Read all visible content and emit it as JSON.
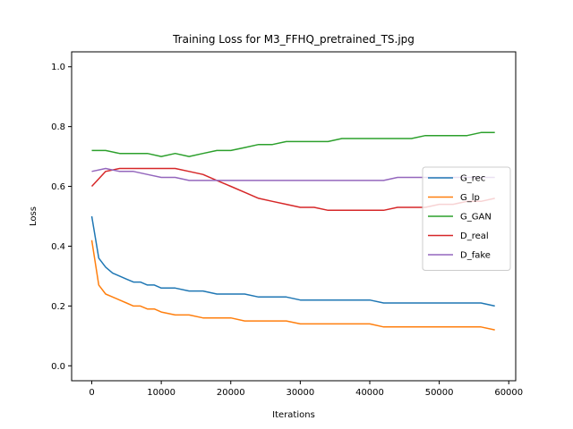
{
  "chart_data": {
    "type": "line",
    "title": "Training Loss for M3_FFHQ_pretrained_TS.jpg",
    "xlabel": "Iterations",
    "ylabel": "Loss",
    "xlim": [
      -2900,
      61000
    ],
    "ylim": [
      -0.05,
      1.05
    ],
    "xticks": [
      0,
      10000,
      20000,
      30000,
      40000,
      50000,
      60000
    ],
    "yticks": [
      0.0,
      0.2,
      0.4,
      0.6,
      0.8,
      1.0
    ],
    "xtick_labels": [
      "0",
      "10000",
      "20000",
      "30000",
      "40000",
      "50000",
      "60000"
    ],
    "ytick_labels": [
      "0.0",
      "0.2",
      "0.4",
      "0.6",
      "0.8",
      "1.0"
    ],
    "grid": false,
    "legend_position": "center-right",
    "series": [
      {
        "name": "G_rec",
        "color": "#1f77b4",
        "x": [
          0,
          1000,
          2000,
          3000,
          4000,
          5000,
          6000,
          7000,
          8000,
          9000,
          10000,
          12000,
          14000,
          16000,
          18000,
          20000,
          22000,
          24000,
          26000,
          28000,
          30000,
          32000,
          34000,
          36000,
          38000,
          40000,
          42000,
          44000,
          46000,
          48000,
          50000,
          52000,
          54000,
          56000,
          58000
        ],
        "values": [
          0.5,
          0.36,
          0.33,
          0.31,
          0.3,
          0.29,
          0.28,
          0.28,
          0.27,
          0.27,
          0.26,
          0.26,
          0.25,
          0.25,
          0.24,
          0.24,
          0.24,
          0.23,
          0.23,
          0.23,
          0.22,
          0.22,
          0.22,
          0.22,
          0.22,
          0.22,
          0.21,
          0.21,
          0.21,
          0.21,
          0.21,
          0.21,
          0.21,
          0.21,
          0.2
        ]
      },
      {
        "name": "G_lp",
        "color": "#ff7f0e",
        "x": [
          0,
          1000,
          2000,
          3000,
          4000,
          5000,
          6000,
          7000,
          8000,
          9000,
          10000,
          12000,
          14000,
          16000,
          18000,
          20000,
          22000,
          24000,
          26000,
          28000,
          30000,
          32000,
          34000,
          36000,
          38000,
          40000,
          42000,
          44000,
          46000,
          48000,
          50000,
          52000,
          54000,
          56000,
          58000
        ],
        "values": [
          0.42,
          0.27,
          0.24,
          0.23,
          0.22,
          0.21,
          0.2,
          0.2,
          0.19,
          0.19,
          0.18,
          0.17,
          0.17,
          0.16,
          0.16,
          0.16,
          0.15,
          0.15,
          0.15,
          0.15,
          0.14,
          0.14,
          0.14,
          0.14,
          0.14,
          0.14,
          0.13,
          0.13,
          0.13,
          0.13,
          0.13,
          0.13,
          0.13,
          0.13,
          0.12
        ]
      },
      {
        "name": "G_GAN",
        "color": "#2ca02c",
        "x": [
          0,
          2000,
          4000,
          6000,
          8000,
          10000,
          12000,
          14000,
          16000,
          18000,
          20000,
          22000,
          24000,
          26000,
          28000,
          30000,
          32000,
          34000,
          36000,
          38000,
          40000,
          42000,
          44000,
          46000,
          48000,
          50000,
          52000,
          54000,
          56000,
          58000
        ],
        "values": [
          0.72,
          0.72,
          0.71,
          0.71,
          0.71,
          0.7,
          0.71,
          0.7,
          0.71,
          0.72,
          0.72,
          0.73,
          0.74,
          0.74,
          0.75,
          0.75,
          0.75,
          0.75,
          0.76,
          0.76,
          0.76,
          0.76,
          0.76,
          0.76,
          0.77,
          0.77,
          0.77,
          0.77,
          0.78,
          0.78
        ]
      },
      {
        "name": "D_real",
        "color": "#d62728",
        "x": [
          0,
          2000,
          4000,
          6000,
          8000,
          10000,
          12000,
          14000,
          16000,
          18000,
          20000,
          22000,
          24000,
          26000,
          28000,
          30000,
          32000,
          34000,
          36000,
          38000,
          40000,
          42000,
          44000,
          46000,
          48000,
          50000,
          52000,
          54000,
          56000,
          58000
        ],
        "values": [
          0.6,
          0.65,
          0.66,
          0.66,
          0.66,
          0.66,
          0.66,
          0.65,
          0.64,
          0.62,
          0.6,
          0.58,
          0.56,
          0.55,
          0.54,
          0.53,
          0.53,
          0.52,
          0.52,
          0.52,
          0.52,
          0.52,
          0.53,
          0.53,
          0.53,
          0.54,
          0.54,
          0.55,
          0.55,
          0.56
        ]
      },
      {
        "name": "D_fake",
        "color": "#9467bd",
        "x": [
          0,
          2000,
          4000,
          6000,
          8000,
          10000,
          12000,
          14000,
          16000,
          18000,
          20000,
          22000,
          24000,
          26000,
          28000,
          30000,
          32000,
          34000,
          36000,
          38000,
          40000,
          42000,
          44000,
          46000,
          48000,
          50000,
          52000,
          54000,
          56000,
          58000
        ],
        "values": [
          0.65,
          0.66,
          0.65,
          0.65,
          0.64,
          0.63,
          0.63,
          0.62,
          0.62,
          0.62,
          0.62,
          0.62,
          0.62,
          0.62,
          0.62,
          0.62,
          0.62,
          0.62,
          0.62,
          0.62,
          0.62,
          0.62,
          0.63,
          0.63,
          0.63,
          0.63,
          0.63,
          0.63,
          0.63,
          0.63
        ]
      }
    ]
  }
}
